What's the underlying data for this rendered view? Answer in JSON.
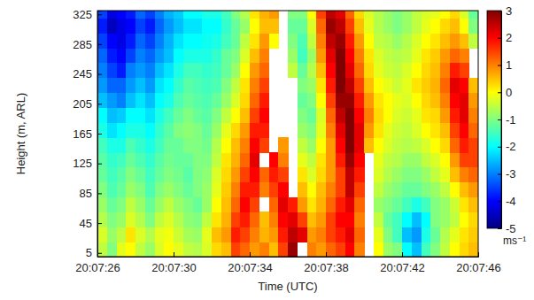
{
  "chart_data": {
    "type": "heatmap",
    "xlabel": "Time (UTC)",
    "ylabel": "Height (m, ARL)",
    "x": [
      26.25,
      26.75,
      27.25,
      27.75,
      28.25,
      28.75,
      29.25,
      29.75,
      30.25,
      30.75,
      31.25,
      31.75,
      32.25,
      32.75,
      33.25,
      33.75,
      34.25,
      34.75,
      35.25,
      35.75,
      36.25,
      36.75,
      37.25,
      37.75,
      38.25,
      38.75,
      39.25,
      39.75,
      40.25,
      40.75,
      41.25,
      41.75,
      42.25,
      42.75,
      43.25,
      43.75,
      44.25,
      44.75,
      45.25,
      45.75
    ],
    "y": [
      10,
      30,
      50,
      70,
      90,
      110,
      130,
      150,
      170,
      190,
      210,
      230,
      250,
      270,
      290,
      310,
      330
    ],
    "z": [
      [
        -0.5,
        -1.0,
        -0.2,
        0.0,
        -0.5,
        -0.8,
        -0.3,
        0.0,
        -0.2,
        -0.5,
        -0.6,
        -0.3,
        0.3,
        0.5,
        1.5,
        1.2,
        0.8,
        1.0,
        0.5,
        1.5,
        2.8,
        null,
        1.0,
        0.8,
        1.2,
        1.5,
        2.0,
        1.0,
        null,
        0.0,
        -0.8,
        -1.0,
        -2.0,
        -2.5,
        -1.5,
        -1.0,
        -0.5,
        0.0,
        0.3,
        0.5
      ],
      [
        -0.3,
        -0.8,
        -0.5,
        0.2,
        -0.3,
        -0.6,
        -0.2,
        -0.1,
        -0.4,
        -0.7,
        -0.8,
        -0.2,
        0.5,
        0.8,
        1.8,
        1.5,
        1.0,
        0.6,
        0.8,
        1.8,
        2.5,
        2.2,
        0.8,
        1.0,
        1.5,
        1.8,
        2.2,
        1.2,
        null,
        -0.2,
        -1.0,
        -1.5,
        -2.5,
        -2.8,
        -1.8,
        -1.2,
        -0.6,
        -0.2,
        0.2,
        0.4
      ],
      [
        -0.6,
        -1.0,
        -0.8,
        -0.3,
        -0.6,
        -1.0,
        -0.5,
        -0.3,
        -0.6,
        -0.9,
        -1.0,
        -0.5,
        0.2,
        0.6,
        1.5,
        1.8,
        1.2,
        0.5,
        1.0,
        2.0,
        2.2,
        1.5,
        0.5,
        0.8,
        1.5,
        2.0,
        2.0,
        1.0,
        null,
        -0.5,
        -1.2,
        -1.5,
        -2.0,
        -2.5,
        -2.0,
        -1.0,
        -0.8,
        -0.5,
        0.0,
        0.3
      ],
      [
        -0.8,
        -1.2,
        -1.0,
        -0.5,
        -0.8,
        -1.2,
        -0.8,
        -0.5,
        -0.8,
        -1.0,
        -1.2,
        -0.8,
        0.0,
        0.5,
        1.2,
        2.0,
        1.5,
        null,
        1.2,
        2.2,
        1.8,
        0.8,
        0.2,
        0.6,
        1.2,
        1.8,
        2.2,
        1.2,
        null,
        -0.8,
        -1.0,
        -1.2,
        -1.5,
        -1.8,
        -1.5,
        -1.0,
        -0.8,
        -0.4,
        0.2,
        0.5
      ],
      [
        -1.0,
        -1.4,
        -1.2,
        -0.8,
        -1.0,
        -1.4,
        -1.0,
        -0.8,
        -1.0,
        -1.2,
        -1.0,
        -0.8,
        -0.2,
        0.4,
        1.0,
        1.8,
        1.8,
        1.0,
        1.5,
        2.0,
        null,
        0.5,
        0.0,
        0.5,
        1.0,
        1.5,
        2.5,
        1.5,
        null,
        -0.5,
        -0.8,
        -1.0,
        -1.2,
        -1.2,
        -1.0,
        -0.8,
        -0.5,
        0.0,
        0.5,
        0.8
      ],
      [
        -1.2,
        -1.5,
        -1.3,
        -1.0,
        -1.2,
        -1.5,
        -1.2,
        -1.0,
        -1.1,
        -1.3,
        -1.0,
        -0.9,
        -0.3,
        0.3,
        0.8,
        1.5,
        2.0,
        1.2,
        1.8,
        1.5,
        null,
        0.2,
        -0.3,
        0.3,
        0.8,
        1.5,
        2.5,
        1.8,
        null,
        -0.3,
        -0.6,
        -0.8,
        -1.0,
        -1.0,
        -0.8,
        -0.5,
        -0.2,
        0.5,
        1.0,
        1.2
      ],
      [
        -1.3,
        -1.6,
        -1.5,
        -1.2,
        -1.4,
        -1.6,
        -1.3,
        -1.1,
        -1.2,
        -1.2,
        -1.0,
        -1.0,
        -0.5,
        0.2,
        0.6,
        1.2,
        2.2,
        null,
        2.0,
        1.0,
        null,
        -0.2,
        -0.5,
        0.2,
        0.8,
        1.8,
        2.8,
        2.0,
        null,
        -0.2,
        -0.5,
        -0.6,
        -0.8,
        -0.8,
        -0.5,
        -0.3,
        0.0,
        0.8,
        1.5,
        1.5
      ],
      [
        -1.5,
        -1.8,
        -1.8,
        -1.4,
        -1.6,
        -1.8,
        -1.5,
        -1.2,
        -1.2,
        -1.0,
        -1.0,
        -1.1,
        -0.6,
        0.0,
        0.5,
        1.0,
        2.0,
        1.5,
        null,
        0.8,
        null,
        -0.5,
        -0.8,
        0.0,
        0.8,
        2.0,
        3.0,
        2.2,
        0.5,
        0.0,
        -0.3,
        -0.5,
        -0.6,
        -0.5,
        -0.3,
        0.0,
        0.3,
        1.2,
        1.8,
        1.5
      ],
      [
        -1.8,
        -2.2,
        -2.0,
        -1.8,
        -1.8,
        -2.0,
        -1.6,
        -1.3,
        -1.0,
        -0.9,
        -1.0,
        -1.2,
        -0.8,
        -0.2,
        0.3,
        0.8,
        1.8,
        1.8,
        null,
        null,
        null,
        -0.8,
        -1.0,
        -0.2,
        1.0,
        2.2,
        3.0,
        2.2,
        0.8,
        0.2,
        -0.2,
        -0.4,
        -0.5,
        -0.3,
        0.0,
        0.2,
        0.5,
        1.5,
        2.0,
        1.2
      ],
      [
        -2.0,
        -2.5,
        -2.4,
        -2.0,
        -2.0,
        -2.2,
        -1.8,
        -1.5,
        -1.2,
        -1.0,
        -1.2,
        -1.3,
        -1.0,
        -0.5,
        0.0,
        0.5,
        1.5,
        2.0,
        null,
        null,
        null,
        -1.0,
        -1.2,
        -0.3,
        1.2,
        2.5,
        3.0,
        2.0,
        1.0,
        0.3,
        0.0,
        -0.3,
        -0.4,
        -0.2,
        0.2,
        0.3,
        0.8,
        1.8,
        2.2,
        1.0
      ],
      [
        -2.5,
        -2.8,
        -3.0,
        -2.5,
        -2.2,
        -2.5,
        -2.0,
        -1.8,
        -1.4,
        -1.2,
        -1.3,
        -1.4,
        -1.2,
        -0.8,
        -0.3,
        0.3,
        1.2,
        1.8,
        null,
        null,
        null,
        -1.2,
        -1.0,
        0.0,
        1.5,
        2.8,
        2.8,
        1.8,
        0.8,
        0.2,
        0.0,
        -0.2,
        -0.3,
        0.0,
        0.3,
        0.5,
        1.0,
        2.0,
        2.2,
        0.8
      ],
      [
        -2.8,
        -3.2,
        -3.2,
        -2.8,
        -2.5,
        -2.8,
        -2.2,
        -2.0,
        -1.6,
        -1.3,
        -1.4,
        -1.5,
        -1.4,
        -1.0,
        -0.5,
        0.2,
        1.0,
        1.5,
        null,
        null,
        null,
        -1.0,
        -0.8,
        0.2,
        1.8,
        3.0,
        2.5,
        1.5,
        0.5,
        0.0,
        -0.2,
        -0.4,
        -0.2,
        0.2,
        0.4,
        0.6,
        1.2,
        2.2,
        2.0,
        0.5
      ],
      [
        -3.0,
        -3.5,
        -3.8,
        -3.0,
        -2.8,
        -3.0,
        -2.5,
        -2.2,
        -1.8,
        -1.5,
        -1.5,
        -1.6,
        -1.5,
        -1.2,
        -0.8,
        0.0,
        0.8,
        1.2,
        null,
        null,
        -0.5,
        -1.2,
        -0.6,
        0.5,
        2.0,
        3.0,
        2.2,
        1.2,
        0.3,
        -0.2,
        -0.4,
        -0.5,
        -0.3,
        0.0,
        0.3,
        0.5,
        1.0,
        1.8,
        1.5,
        null
      ],
      [
        -3.2,
        -3.8,
        -4.0,
        -3.5,
        -3.0,
        -3.2,
        -2.8,
        -2.5,
        -2.0,
        -1.8,
        -1.8,
        -1.8,
        -1.6,
        -1.2,
        -1.0,
        -0.3,
        0.5,
        1.0,
        null,
        null,
        -0.8,
        -1.5,
        -0.8,
        0.8,
        2.2,
        3.0,
        2.0,
        1.0,
        0.2,
        -0.3,
        -0.5,
        -0.6,
        -0.5,
        -0.2,
        0.2,
        0.4,
        0.8,
        1.2,
        1.0,
        null
      ],
      [
        -3.5,
        -4.0,
        -4.2,
        -3.8,
        -3.2,
        -3.5,
        -3.0,
        -2.6,
        -2.2,
        -2.0,
        -2.0,
        -1.9,
        -1.8,
        -1.5,
        -1.2,
        -0.5,
        0.2,
        0.8,
        0.0,
        null,
        -1.0,
        -1.4,
        -0.5,
        1.0,
        2.5,
        2.8,
        1.8,
        0.8,
        0.0,
        -0.5,
        -0.6,
        -0.8,
        -0.6,
        -0.3,
        0.0,
        0.2,
        0.5,
        0.8,
        0.5,
        -0.5
      ],
      [
        -3.8,
        -4.5,
        -4.2,
        -4.0,
        -3.5,
        -3.8,
        -3.2,
        -2.8,
        -2.5,
        -2.2,
        -2.2,
        -2.0,
        -2.0,
        -1.6,
        -1.2,
        -0.8,
        0.0,
        0.5,
        0.5,
        null,
        -1.2,
        -1.2,
        -0.3,
        1.2,
        2.8,
        2.5,
        1.5,
        0.5,
        -0.2,
        -0.6,
        -0.8,
        -1.0,
        -0.8,
        -0.5,
        -0.2,
        0.0,
        0.3,
        0.5,
        0.0,
        -1.0
      ],
      [
        -3.5,
        -4.2,
        -4.0,
        -3.8,
        -3.2,
        -3.5,
        -3.0,
        -2.6,
        -2.4,
        -2.0,
        -2.0,
        -1.8,
        -1.8,
        -1.5,
        -1.0,
        -0.6,
        0.2,
        0.6,
        0.8,
        null,
        -1.0,
        -1.0,
        0.0,
        1.5,
        2.5,
        2.2,
        1.2,
        0.3,
        -0.3,
        -0.6,
        -0.8,
        -1.0,
        -0.8,
        -0.5,
        -0.3,
        -0.2,
        0.0,
        0.3,
        -0.3,
        -1.2
      ]
    ],
    "xlim": [
      26,
      46
    ],
    "xticks": [
      {
        "value": 26,
        "label": "20:07:26"
      },
      {
        "value": 30,
        "label": "20:07:30"
      },
      {
        "value": 34,
        "label": "20:07:34"
      },
      {
        "value": 38,
        "label": "20:07:38"
      },
      {
        "value": 42,
        "label": "20:07:42"
      },
      {
        "value": 46,
        "label": "20:07:46"
      }
    ],
    "ylim": [
      0,
      330
    ],
    "yticks": [
      5,
      45,
      85,
      125,
      165,
      205,
      245,
      285,
      325
    ],
    "colorbar_range": [
      -5,
      3
    ],
    "colorbar_ticks": [
      -5,
      -4,
      -3,
      -2,
      -1,
      0,
      1,
      2,
      3
    ],
    "colorbar_label": "ms⁻¹"
  }
}
